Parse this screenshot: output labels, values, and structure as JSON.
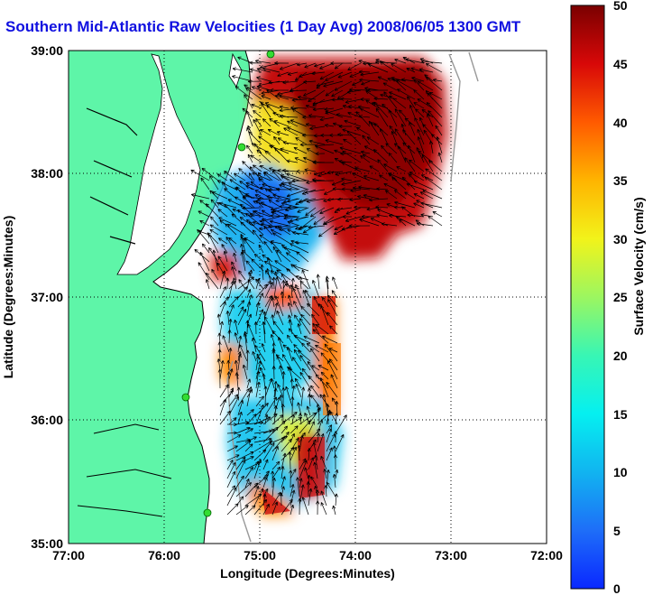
{
  "title": "Southern Mid-Atlantic Raw Velocities (1 Day Avg) 2008/06/05 1300 GMT",
  "x_axis": {
    "label": "Longitude (Degrees:Minutes)",
    "ticks": [
      "77:00",
      "76:00",
      "75:00",
      "74:00",
      "73:00",
      "72:00"
    ]
  },
  "y_axis": {
    "label": "Latitude (Degrees:Minutes)",
    "ticks": [
      "39:00",
      "38:00",
      "37:00",
      "36:00",
      "35:00"
    ]
  },
  "colorbar": {
    "label": "Surface Velocity (cm/s)",
    "ticks": [
      "50",
      "45",
      "40",
      "35",
      "30",
      "25",
      "20",
      "15",
      "10",
      "5",
      "0"
    ],
    "min": 0,
    "max": 50
  },
  "colors": {
    "land": "#5ef5a8",
    "coastline": "#000000",
    "title": "#1010e0",
    "station": "#33dd33"
  },
  "map": {
    "lon_range": [
      -77,
      -72
    ],
    "lat_range": [
      35,
      39
    ],
    "grid": "dotted",
    "station_markers": 5
  }
}
